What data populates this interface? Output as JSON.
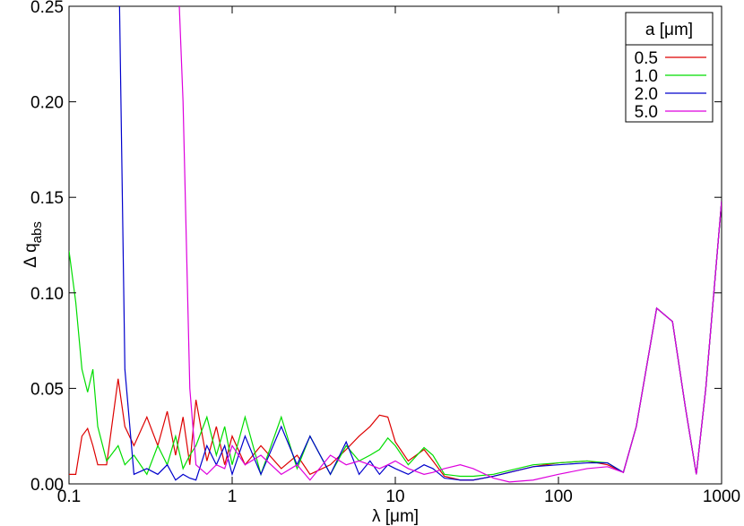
{
  "chart_data": {
    "type": "line",
    "xlabel": "λ [μm]",
    "ylabel": "Δ q",
    "ylabel_subscript": "abs",
    "legend_title": "a [μm]",
    "legend": "upper right",
    "xscale": "log",
    "xlim": [
      0.1,
      1000
    ],
    "xticks": [
      0.1,
      1,
      10,
      100,
      1000
    ],
    "ylim": [
      0,
      0.25
    ],
    "yticks": [
      {
        "value": 0,
        "label": "0.00"
      },
      0.05,
      {
        "value": 0.1,
        "label": "0.10"
      },
      0.15,
      {
        "value": 0.2,
        "label": "0.20"
      },
      0.25
    ],
    "x": [
      0.1,
      0.11,
      0.12,
      0.13,
      0.14,
      0.15,
      0.17,
      0.2,
      0.22,
      0.25,
      0.3,
      0.35,
      0.4,
      0.45,
      0.5,
      0.55,
      0.6,
      0.7,
      0.8,
      0.9,
      1,
      1.2,
      1.5,
      2,
      2.5,
      3,
      4,
      5,
      6,
      7,
      8,
      9,
      10,
      12,
      15,
      17,
      20,
      25,
      30,
      40,
      50,
      70,
      100,
      150,
      200,
      250,
      300,
      400,
      500,
      600,
      700,
      800,
      1000
    ],
    "series": [
      {
        "name": "0.5",
        "color": "#dd0000",
        "values": [
          0.005,
          0.005,
          0.025,
          0.029,
          0.02,
          0.01,
          0.01,
          0.055,
          0.03,
          0.02,
          0.035,
          0.02,
          0.038,
          0.015,
          0.035,
          0.01,
          0.044,
          0.012,
          0.03,
          0.01,
          0.025,
          0.01,
          0.02,
          0.008,
          0.015,
          0.005,
          0.01,
          0.018,
          0.025,
          0.03,
          0.036,
          0.035,
          0.022,
          0.012,
          0.018,
          0.012,
          0.004,
          0.002,
          0.002,
          0.004,
          0.006,
          0.009,
          0.011,
          0.012,
          0.01,
          0.006,
          0.03,
          0.092,
          0.085,
          0.04,
          0.005,
          0.05,
          0.148
        ]
      },
      {
        "name": "1.0",
        "color": "#00dd00",
        "values": [
          0.122,
          0.095,
          0.06,
          0.048,
          0.06,
          0.03,
          0.012,
          0.02,
          0.01,
          0.015,
          0.005,
          0.02,
          0.01,
          0.025,
          0.008,
          0.015,
          0.02,
          0.035,
          0.015,
          0.03,
          0.01,
          0.035,
          0.005,
          0.035,
          0.008,
          0.025,
          0.005,
          0.02,
          0.012,
          0.015,
          0.018,
          0.024,
          0.02,
          0.01,
          0.019,
          0.015,
          0.005,
          0.004,
          0.004,
          0.005,
          0.007,
          0.01,
          0.011,
          0.012,
          0.011,
          0.006,
          0.03,
          0.092,
          0.085,
          0.04,
          0.005,
          0.05,
          0.148
        ]
      },
      {
        "name": "2.0",
        "color": "#0000cc",
        "values": [
          null,
          null,
          null,
          null,
          null,
          null,
          null,
          0.3,
          0.06,
          0.005,
          0.008,
          0.005,
          0.01,
          0.002,
          0.005,
          0.003,
          0.002,
          0.02,
          0.01,
          0.02,
          0.005,
          0.025,
          0.005,
          0.03,
          0.01,
          0.025,
          0.005,
          0.022,
          0.005,
          0.012,
          0.005,
          0.01,
          0.008,
          0.005,
          0.01,
          0.008,
          0.003,
          0.002,
          0.002,
          0.004,
          0.006,
          0.009,
          0.01,
          0.011,
          0.011,
          0.006,
          0.03,
          0.092,
          0.085,
          0.04,
          0.005,
          0.05,
          0.148
        ]
      },
      {
        "name": "5.0",
        "color": "#dd00dd",
        "values": [
          null,
          null,
          null,
          null,
          null,
          null,
          null,
          null,
          null,
          null,
          null,
          null,
          null,
          0.3,
          0.2,
          0.05,
          0.01,
          0.005,
          0.01,
          0.008,
          0.02,
          0.01,
          0.015,
          0.005,
          0.01,
          0.002,
          0.015,
          0.01,
          0.012,
          0.01,
          0.008,
          0.01,
          0.012,
          0.008,
          0.005,
          0.006,
          0.008,
          0.01,
          0.008,
          0.003,
          0.001,
          0.002,
          0.005,
          0.008,
          0.009,
          0.006,
          0.03,
          0.092,
          0.085,
          0.04,
          0.005,
          0.05,
          0.148
        ]
      }
    ]
  }
}
